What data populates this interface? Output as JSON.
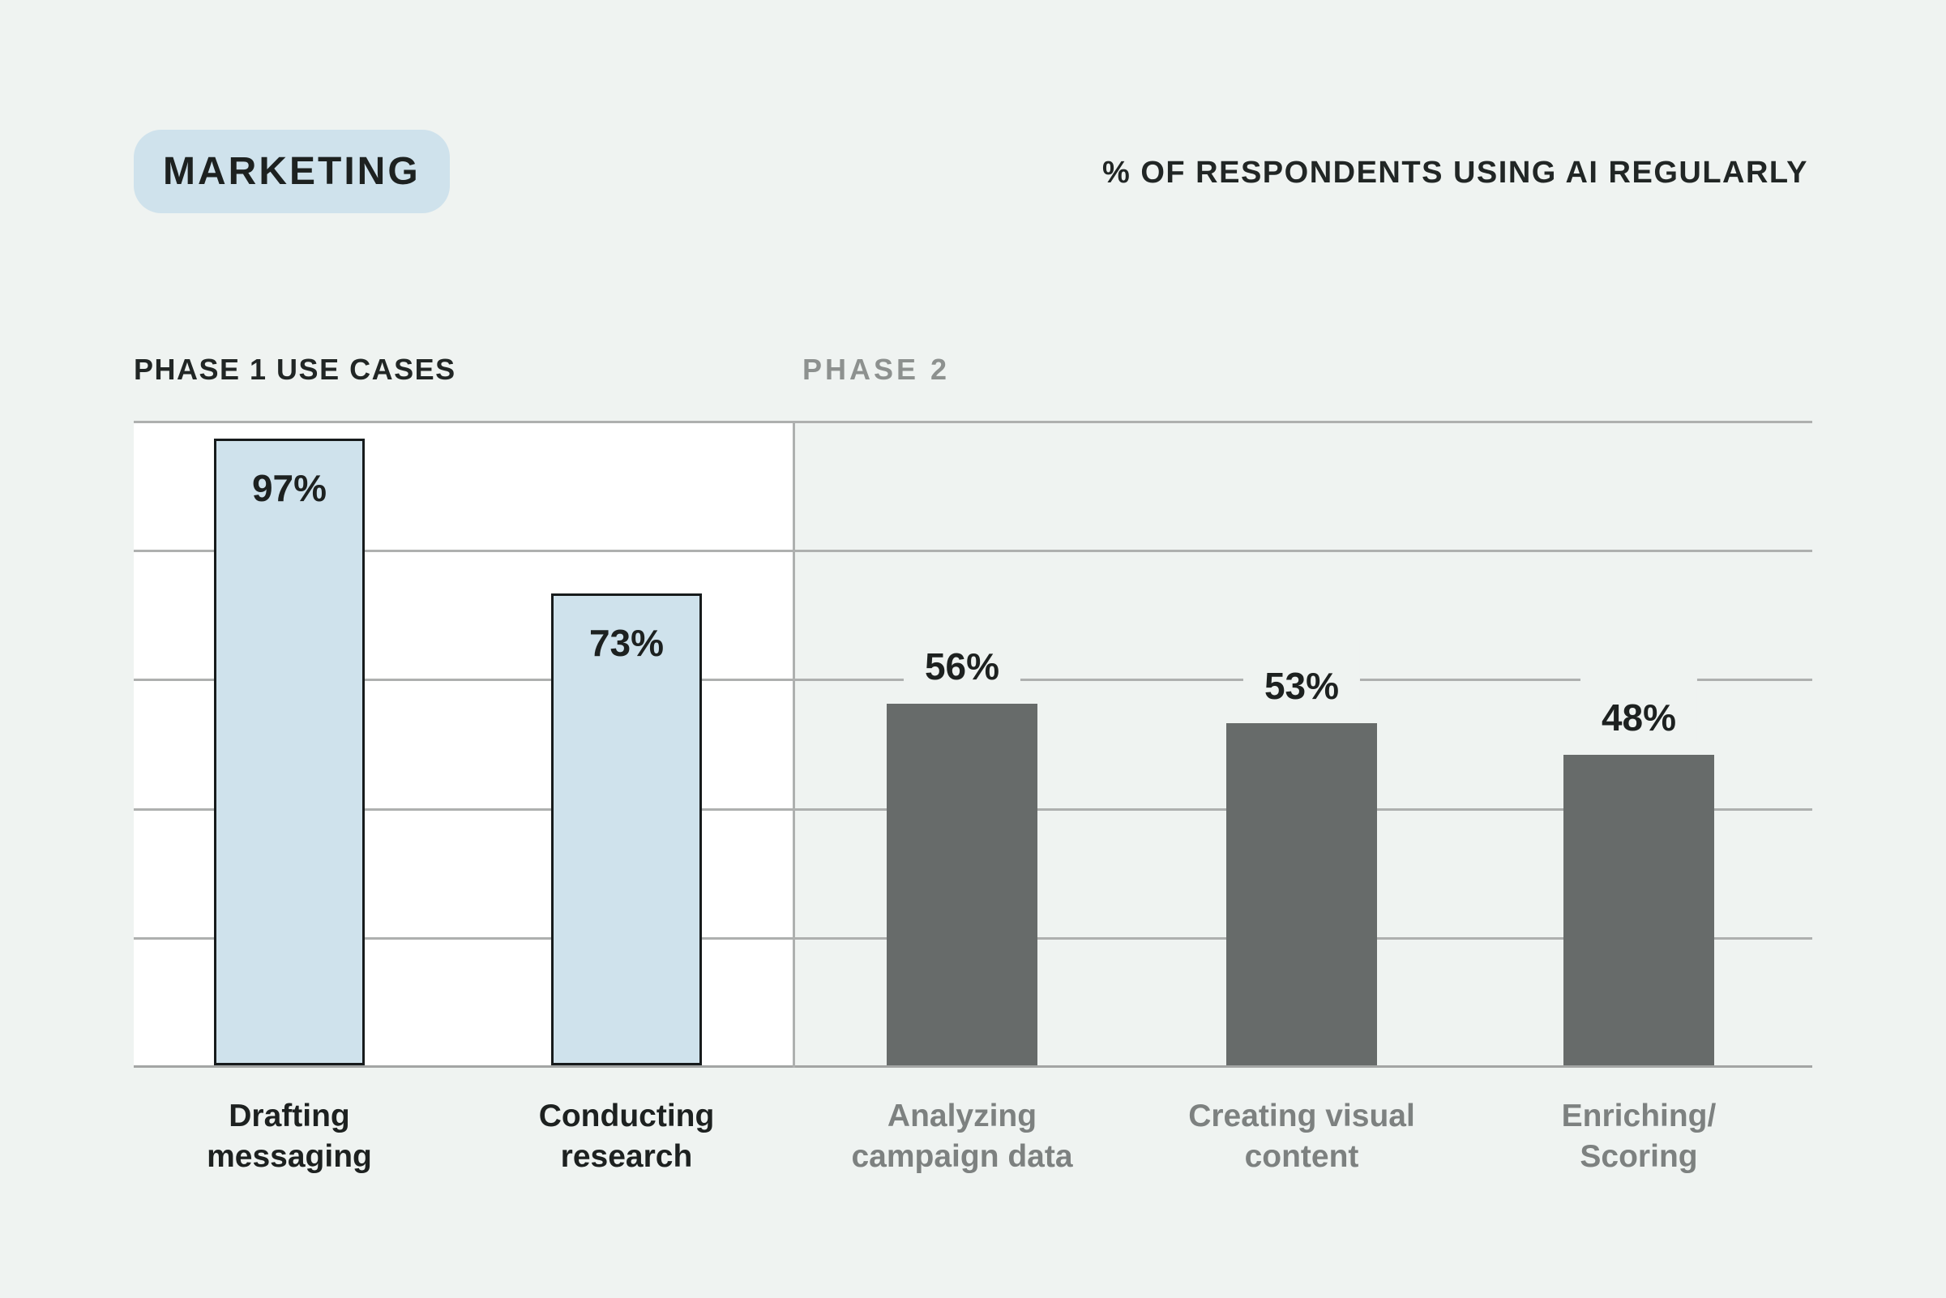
{
  "header": {
    "badge_label": "MARKETING",
    "title": "% OF RESPONDENTS USING AI REGULARLY"
  },
  "section_headers": {
    "phase1": "PHASE 1 USE CASES",
    "phase2": "PHASE 2"
  },
  "colors": {
    "page_background": "#eff3f1",
    "phase1_plot_background": "#ffffff",
    "badge_and_blue_bar": "#cfe2ec",
    "blue_bar_outline": "#171b1c",
    "gray_bar": "#676b6a",
    "gridline": "#aeb0af",
    "dark_text": "#1d2120",
    "gray_text": "#8d918f"
  },
  "chart_data": {
    "type": "bar",
    "title": "% OF RESPONDENTS USING AI REGULARLY",
    "subtitle_badge": "MARKETING",
    "ylabel": "% of respondents using AI regularly",
    "ylim": [
      0,
      100
    ],
    "gridlines_percent": [
      0,
      20,
      40,
      60,
      80,
      100
    ],
    "grid": "on",
    "legend_position": "none",
    "categories": [
      "Drafting messaging",
      "Conducting research",
      "Analyzing campaign data",
      "Creating visual content",
      "Enriching/ Scoring"
    ],
    "values": [
      97,
      73,
      56,
      53,
      48
    ],
    "groups": [
      {
        "name": "PHASE 1 USE CASES",
        "bar_style": "light-blue-outlined",
        "bars": [
          {
            "label_line1": "Drafting",
            "label_line2": "messaging",
            "value": 97,
            "value_label": "97%"
          },
          {
            "label_line1": "Conducting",
            "label_line2": "research",
            "value": 73,
            "value_label": "73%"
          }
        ]
      },
      {
        "name": "PHASE 2",
        "bar_style": "dark-gray",
        "bars": [
          {
            "label_line1": "Analyzing",
            "label_line2": "campaign data",
            "value": 56,
            "value_label": "56%"
          },
          {
            "label_line1": "Creating visual",
            "label_line2": "content",
            "value": 53,
            "value_label": "53%"
          },
          {
            "label_line1": "Enriching/",
            "label_line2": "Scoring",
            "value": 48,
            "value_label": "48%"
          }
        ]
      }
    ]
  }
}
